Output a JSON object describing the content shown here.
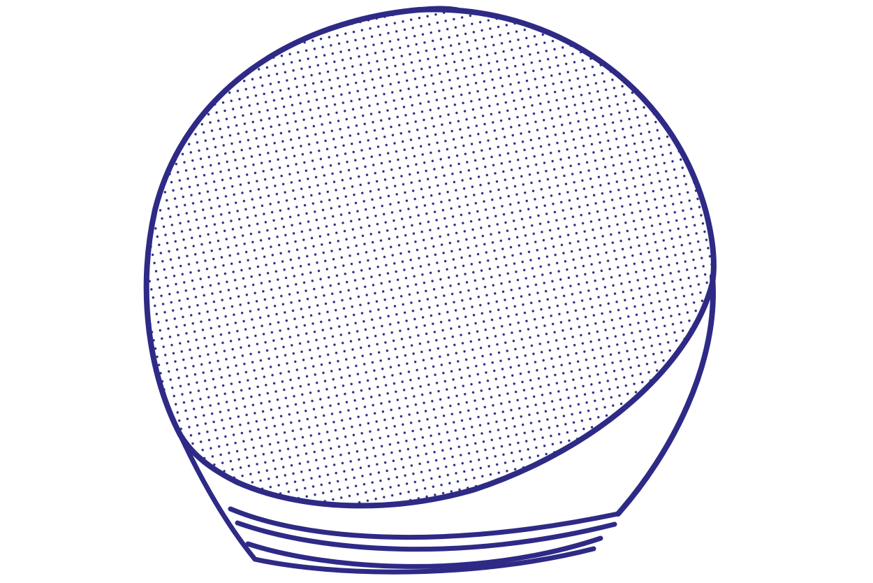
{
  "illustration": {
    "subject": "smart-speaker-sphere",
    "colors": {
      "stroke": "#2e2a86",
      "background": "#ffffff"
    }
  }
}
